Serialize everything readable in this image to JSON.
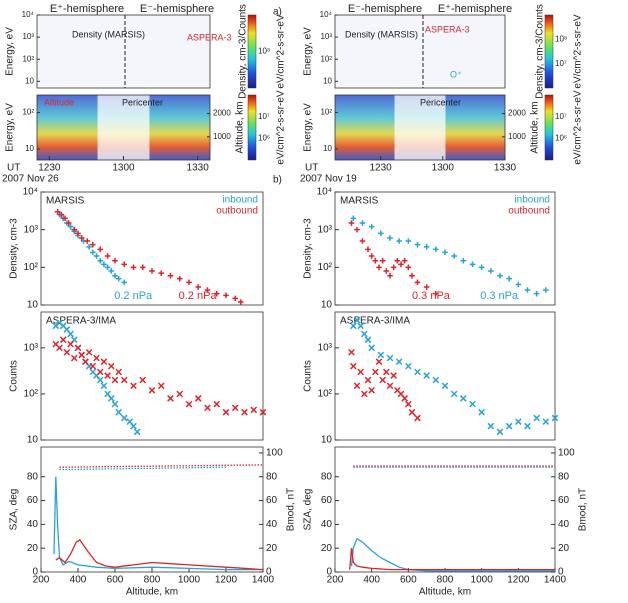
{
  "chart_data": [
    {
      "type": "spectrogram",
      "panel_label": "a)",
      "ut_label": "UT",
      "date": "2007 Nov 26",
      "xlim": [
        -5,
        65
      ],
      "xticks": [
        {
          "value": 0,
          "label": "1230"
        },
        {
          "value": 30,
          "label": "1300"
        },
        {
          "value": 60,
          "label": "1330"
        }
      ],
      "ylabel": "Energy, eV",
      "ylim": [
        5,
        10000
      ],
      "yticks": [
        {
          "value": 10,
          "label": "10"
        },
        {
          "value": 100,
          "label": "10²"
        },
        {
          "value": 1000,
          "label": "10³"
        },
        {
          "value": 10000,
          "label": "10⁴"
        }
      ],
      "lower_ylim": [
        5,
        300
      ],
      "lower_yticks": [
        {
          "value": 10,
          "label": "10"
        },
        {
          "value": 100,
          "label": "10²"
        }
      ],
      "y2label": "Altitude, km",
      "y2lim": [
        0,
        2800
      ],
      "y2ticks": [
        1000,
        2000
      ],
      "hemisphere_labels": [
        "E⁺-hemisphere",
        "E⁻-hemisphere"
      ],
      "annotations": [
        "Density (MARSIS)",
        "ASPERA-3",
        "Altitude",
        "Pericenter"
      ],
      "colorbar_titles": [
        "Density, cm-3/Counts",
        "eV/cm^2-s-sr-eV",
        "eV/cm^2-s-sr-eV"
      ],
      "colorbar_ticks": [
        [
          "10⁸"
        ],
        [
          "10⁷",
          "10⁶"
        ]
      ]
    },
    {
      "type": "spectrogram",
      "ut_label": "UT",
      "date": "2007 Nov 19",
      "xlim": [
        -22,
        60
      ],
      "xticks": [
        {
          "value": 0,
          "label": "1230"
        },
        {
          "value": 30,
          "label": "1300"
        },
        {
          "value": 60,
          "label": "1330"
        }
      ],
      "ylabel": "Energy, eV",
      "ylim": [
        5,
        10000
      ],
      "yticks": [
        {
          "value": 10,
          "label": "10"
        },
        {
          "value": 100,
          "label": "10²"
        },
        {
          "value": 1000,
          "label": "10³"
        },
        {
          "value": 10000,
          "label": "10⁴"
        }
      ],
      "lower_ylim": [
        5,
        300
      ],
      "lower_yticks": [
        {
          "value": 10,
          "label": "10"
        },
        {
          "value": 100,
          "label": "10²"
        }
      ],
      "y2label": "Altitude, km",
      "y2lim": [
        0,
        2800
      ],
      "y2ticks": [
        1000,
        2000
      ],
      "hemisphere_labels": [
        "E⁻-hemisphere",
        "E⁺-hemisphere"
      ],
      "annotations": [
        "Density (MARSIS)",
        "ASPERA-3",
        "O⁺",
        "Pericenter"
      ],
      "colorbar_titles": [
        "Density, cm-3/Counts",
        "eV/cm^2-s-sr-eV",
        "eV/cm^2-s-sr-eV"
      ],
      "colorbar_ticks": [
        [
          "10⁸",
          "10⁷"
        ],
        [
          "10⁷",
          "10⁶"
        ]
      ]
    },
    {
      "type": "scatter",
      "marker": "plus",
      "yscale": "log",
      "panel_label": "b)",
      "title": "MARSIS",
      "ylabel": "Density, cm-3",
      "xlim": [
        200,
        1400
      ],
      "ylim": [
        10,
        10000
      ],
      "yticks": [
        {
          "value": 10,
          "label": "10"
        },
        {
          "value": 100,
          "label": "10²"
        },
        {
          "value": 1000,
          "label": "10³"
        },
        {
          "value": 10000,
          "label": "10⁴"
        }
      ],
      "legend": "upper right",
      "series": [
        {
          "name": "inbound",
          "color": "#29a3d6",
          "x": [
            300,
            320,
            340,
            360,
            380,
            400,
            430,
            460,
            480,
            500,
            520,
            540,
            560,
            580,
            600,
            620,
            650
          ],
          "values": [
            2500,
            2000,
            1500,
            1200,
            900,
            700,
            500,
            350,
            250,
            200,
            150,
            120,
            100,
            80,
            60,
            50,
            40
          ]
        },
        {
          "name": "outbound",
          "color": "#d9262c",
          "x": [
            290,
            310,
            330,
            350,
            380,
            400,
            420,
            450,
            480,
            520,
            560,
            600,
            650,
            700,
            750,
            800,
            850,
            900,
            950,
            1000,
            1050,
            1100,
            1150,
            1200,
            1250,
            1280
          ],
          "values": [
            3000,
            2500,
            2000,
            1500,
            1000,
            800,
            600,
            500,
            400,
            300,
            200,
            150,
            120,
            100,
            100,
            80,
            70,
            60,
            50,
            40,
            30,
            25,
            20,
            18,
            15,
            12
          ]
        }
      ],
      "annotations": [
        {
          "text": "0.2 nPa",
          "color": "#29a3d6"
        },
        {
          "text": "0.2 nPa",
          "color": "#d9262c"
        }
      ]
    },
    {
      "type": "scatter",
      "marker": "plus",
      "yscale": "log",
      "title": "MARSIS",
      "ylabel": "Density, cm-3",
      "xlim": [
        200,
        1400
      ],
      "ylim": [
        10,
        10000
      ],
      "yticks": [
        {
          "value": 10,
          "label": "10"
        },
        {
          "value": 100,
          "label": "10²"
        },
        {
          "value": 1000,
          "label": "10³"
        },
        {
          "value": 10000,
          "label": "10⁴"
        }
      ],
      "legend": "upper right",
      "series": [
        {
          "name": "inbound",
          "color": "#29a3d6",
          "x": [
            300,
            350,
            400,
            450,
            500,
            550,
            600,
            650,
            700,
            750,
            800,
            850,
            900,
            950,
            1000,
            1050,
            1100,
            1150,
            1200,
            1250,
            1300,
            1350
          ],
          "values": [
            2000,
            1500,
            1200,
            800,
            600,
            500,
            500,
            400,
            350,
            300,
            250,
            200,
            150,
            120,
            100,
            80,
            60,
            50,
            35,
            25,
            20,
            25
          ]
        },
        {
          "name": "outbound",
          "color": "#d9262c",
          "x": [
            290,
            320,
            350,
            380,
            400,
            420,
            440,
            460,
            480,
            500,
            520,
            540,
            560,
            580,
            600,
            620,
            650,
            700,
            750
          ],
          "values": [
            1500,
            1000,
            500,
            300,
            200,
            150,
            100,
            150,
            80,
            60,
            100,
            150,
            120,
            150,
            100,
            60,
            40,
            30,
            20
          ]
        }
      ],
      "annotations": [
        {
          "text": "0.3 nPa",
          "color": "#d9262c"
        },
        {
          "text": "0.3 nPa",
          "color": "#29a3d6"
        }
      ]
    },
    {
      "type": "scatter",
      "marker": "cross",
      "yscale": "log",
      "title": "ASPERA-3/IMA",
      "ylabel": "Counts",
      "xlim": [
        200,
        1400
      ],
      "ylim": [
        10,
        6000
      ],
      "yticks": [
        {
          "value": 10,
          "label": "10"
        },
        {
          "value": 100,
          "label": "10²"
        },
        {
          "value": 1000,
          "label": "10³"
        }
      ],
      "series": [
        {
          "color": "#29a3d6",
          "x": [
            280,
            300,
            320,
            340,
            360,
            380,
            400,
            420,
            440,
            460,
            480,
            500,
            520,
            540,
            560,
            580,
            600,
            620,
            650,
            680,
            700,
            720
          ],
          "values": [
            3000,
            3500,
            3000,
            2500,
            2000,
            1500,
            1000,
            700,
            500,
            400,
            300,
            250,
            200,
            150,
            100,
            80,
            60,
            40,
            30,
            25,
            20,
            15
          ]
        },
        {
          "color": "#d9262c",
          "x": [
            280,
            300,
            320,
            340,
            360,
            380,
            400,
            420,
            440,
            460,
            480,
            500,
            520,
            540,
            560,
            580,
            600,
            620,
            650,
            700,
            750,
            800,
            850,
            900,
            950,
            1000,
            1050,
            1100,
            1150,
            1200,
            1250,
            1300,
            1350,
            1400
          ],
          "values": [
            1200,
            1000,
            1500,
            800,
            1200,
            600,
            1000,
            700,
            500,
            800,
            400,
            600,
            300,
            500,
            250,
            400,
            200,
            300,
            200,
            150,
            200,
            120,
            150,
            80,
            100,
            60,
            80,
            50,
            60,
            40,
            50,
            40,
            45,
            40
          ]
        }
      ]
    },
    {
      "type": "scatter",
      "marker": "cross",
      "yscale": "log",
      "title": "ASPERA-3/IMA",
      "ylabel": "Counts",
      "xlim": [
        200,
        1400
      ],
      "ylim": [
        10,
        6000
      ],
      "yticks": [
        {
          "value": 10,
          "label": "10"
        },
        {
          "value": 100,
          "label": "10²"
        },
        {
          "value": 1000,
          "label": "10³"
        }
      ],
      "series": [
        {
          "color": "#29a3d6",
          "x": [
            300,
            320,
            340,
            360,
            380,
            400,
            450,
            500,
            550,
            600,
            650,
            700,
            750,
            800,
            850,
            900,
            950,
            1000,
            1050,
            1100,
            1150,
            1200,
            1250,
            1300,
            1350,
            1400
          ],
          "values": [
            3000,
            4000,
            3000,
            2000,
            1500,
            1000,
            700,
            600,
            500,
            400,
            300,
            250,
            200,
            150,
            100,
            80,
            60,
            40,
            20,
            15,
            20,
            25,
            20,
            30,
            25,
            30
          ]
        },
        {
          "color": "#d9262c",
          "x": [
            290,
            300,
            320,
            340,
            360,
            380,
            400,
            420,
            440,
            460,
            480,
            500,
            520,
            540,
            560,
            580,
            600,
            620,
            650
          ],
          "values": [
            800,
            400,
            150,
            300,
            100,
            200,
            120,
            300,
            500,
            200,
            300,
            150,
            250,
            120,
            100,
            80,
            60,
            40,
            30
          ]
        }
      ]
    },
    {
      "type": "line",
      "ylabel": "SZA, deg",
      "y2label": "Bmod, nT",
      "xlabel": "Altitude, km",
      "xlim": [
        200,
        1400
      ],
      "xticks": [
        200,
        400,
        600,
        800,
        1000,
        1200,
        1400
      ],
      "ylim": [
        0,
        105
      ],
      "yticks": [
        0,
        20,
        40,
        60,
        80
      ],
      "y2lim": [
        0,
        105
      ],
      "y2ticks": [
        0,
        20,
        40,
        60,
        80,
        100
      ],
      "series": [
        {
          "color": "#29a3d6",
          "style": "dotted",
          "x": [
            300,
            1200
          ],
          "values": [
            86,
            88
          ]
        },
        {
          "color": "#d9262c",
          "style": "dotted",
          "x": [
            300,
            1400
          ],
          "values": [
            88,
            90
          ]
        },
        {
          "color": "#29a3d6",
          "style": "solid",
          "axis": "y2",
          "x": [
            270,
            280,
            290,
            300,
            320,
            350,
            400,
            500,
            600,
            800,
            1000,
            1200,
            1400
          ],
          "values": [
            15,
            80,
            40,
            12,
            6,
            9,
            6,
            4,
            3,
            4,
            3,
            2,
            2
          ]
        },
        {
          "color": "#d9262c",
          "style": "solid",
          "axis": "y2",
          "x": [
            280,
            300,
            330,
            360,
            390,
            410,
            450,
            500,
            550,
            600,
            700,
            800,
            900,
            1000,
            1200,
            1400
          ],
          "values": [
            10,
            12,
            8,
            15,
            25,
            27,
            18,
            8,
            5,
            4,
            6,
            8,
            7,
            6,
            4,
            2
          ]
        }
      ]
    },
    {
      "type": "line",
      "ylabel": "SZA, deg",
      "y2label": "Bmod, nT",
      "xlabel": "Altitude, km",
      "xlim": [
        200,
        1400
      ],
      "xticks": [
        200,
        400,
        600,
        800,
        1000,
        1200,
        1400
      ],
      "ylim": [
        0,
        105
      ],
      "yticks": [
        0,
        20,
        40,
        60,
        80
      ],
      "y2lim": [
        0,
        105
      ],
      "y2ticks": [
        0,
        20,
        40,
        60,
        80,
        100
      ],
      "series": [
        {
          "color": "#29a3d6",
          "style": "dotted",
          "x": [
            300,
            1400
          ],
          "values": [
            88,
            88
          ]
        },
        {
          "color": "#d9262c",
          "style": "dotted",
          "x": [
            300,
            1400
          ],
          "values": [
            89,
            89
          ]
        },
        {
          "color": "#29a3d6",
          "style": "solid",
          "axis": "y2",
          "x": [
            290,
            300,
            320,
            350,
            400,
            450,
            500,
            550,
            600,
            700,
            800,
            900,
            1000,
            1200,
            1400
          ],
          "values": [
            5,
            20,
            28,
            25,
            18,
            12,
            8,
            4,
            2,
            1,
            1,
            1,
            1,
            1,
            1
          ]
        },
        {
          "color": "#d9262c",
          "style": "solid",
          "axis": "y2",
          "x": [
            280,
            290,
            300,
            320,
            350,
            400,
            500,
            600,
            800,
            1000,
            1200,
            1400
          ],
          "values": [
            2,
            20,
            8,
            5,
            4,
            3,
            2,
            2,
            2,
            2,
            2,
            2
          ]
        }
      ]
    }
  ]
}
